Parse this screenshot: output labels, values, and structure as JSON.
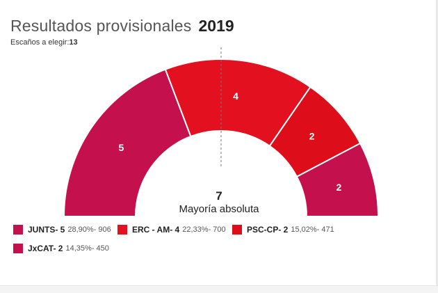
{
  "header": {
    "title": "Resultados provisionales",
    "year": "2019",
    "seats_label": "Escaños a elegir:",
    "seats_value": "13"
  },
  "center": {
    "majority_value": "7",
    "majority_label": "Mayoría absoluta"
  },
  "chart_data": {
    "type": "pie",
    "subtype": "parliament-half-donut",
    "total_seats": 13,
    "majority": 7,
    "order": "left-to-right",
    "series": [
      {
        "name": "JUNTS",
        "seats": 5,
        "percent": 28.9,
        "votes": 906,
        "color": "#c4104c"
      },
      {
        "name": "ERC - AM",
        "seats": 4,
        "percent": 22.33,
        "votes": 700,
        "color": "#e3101f"
      },
      {
        "name": "PSC-CP",
        "seats": 2,
        "percent": 15.02,
        "votes": 471,
        "color": "#dd0d1a"
      },
      {
        "name": "JxCAT",
        "seats": 2,
        "percent": 14.35,
        "votes": 450,
        "color": "#c4104c"
      }
    ]
  },
  "legend": {
    "items": [
      {
        "name": "JUNTS- 5",
        "stats": "28,90%- 906",
        "color": "#c4104c"
      },
      {
        "name": "ERC - AM- 4",
        "stats": "22,33%- 700",
        "color": "#e3101f"
      },
      {
        "name": "PSC-CP- 2",
        "stats": "15,02%- 471",
        "color": "#dd0d1a"
      },
      {
        "name": "JxCAT- 2",
        "stats": "14,35%- 450",
        "color": "#c4104c"
      }
    ]
  }
}
